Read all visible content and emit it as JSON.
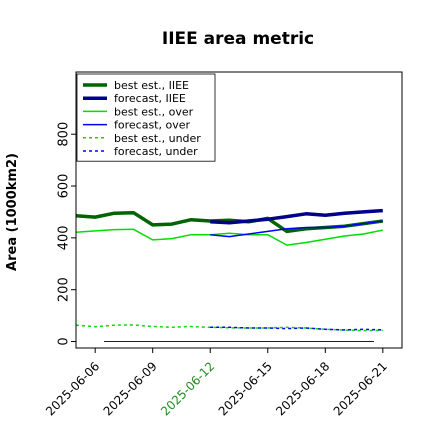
{
  "chart_data": {
    "type": "line",
    "title": "IIEE area metric",
    "xlabel": "",
    "ylabel": "Area (1000km2)",
    "xlim": [
      "2025-06-05",
      "2025-06-22"
    ],
    "ylim": [
      -25,
      1040
    ],
    "y_ticks": [
      0,
      200,
      400,
      600,
      800
    ],
    "x_ticks": [
      "2025-06-06",
      "2025-06-09",
      "2025-06-12",
      "2025-06-15",
      "2025-06-18",
      "2025-06-21"
    ],
    "highlighted_x_tick": "2025-06-12",
    "highlight_color": "#228B22",
    "grid": false,
    "legend_position": "top-left",
    "zero_line": 0,
    "series": [
      {
        "name": "best est., IIEE",
        "color": "#006400",
        "style": "solid",
        "width": 3.5,
        "x": [
          "2025-06-05",
          "2025-06-06",
          "2025-06-07",
          "2025-06-08",
          "2025-06-09",
          "2025-06-10",
          "2025-06-11",
          "2025-06-12",
          "2025-06-13",
          "2025-06-14",
          "2025-06-15",
          "2025-06-16",
          "2025-06-17",
          "2025-06-18",
          "2025-06-19",
          "2025-06-20",
          "2025-06-21"
        ],
        "values": [
          485,
          480,
          495,
          497,
          450,
          453,
          470,
          465,
          468,
          462,
          475,
          425,
          435,
          440,
          445,
          455,
          465
        ]
      },
      {
        "name": "forecast, IIEE",
        "color": "#00008B",
        "style": "solid",
        "width": 3.5,
        "x": [
          "2025-06-12",
          "2025-06-13",
          "2025-06-14",
          "2025-06-15",
          "2025-06-16",
          "2025-06-17",
          "2025-06-18",
          "2025-06-19",
          "2025-06-20",
          "2025-06-21"
        ],
        "values": [
          462,
          458,
          465,
          472,
          482,
          493,
          487,
          495,
          500,
          505
        ]
      },
      {
        "name": "best est., over",
        "color": "#00DD00",
        "style": "solid",
        "width": 1.5,
        "x": [
          "2025-06-05",
          "2025-06-06",
          "2025-06-07",
          "2025-06-08",
          "2025-06-09",
          "2025-06-10",
          "2025-06-11",
          "2025-06-12",
          "2025-06-13",
          "2025-06-14",
          "2025-06-15",
          "2025-06-16",
          "2025-06-17",
          "2025-06-18",
          "2025-06-19",
          "2025-06-20",
          "2025-06-21"
        ],
        "values": [
          422,
          427,
          432,
          433,
          392,
          397,
          412,
          412,
          418,
          412,
          412,
          372,
          382,
          395,
          407,
          415,
          430
        ]
      },
      {
        "name": "forecast, over",
        "color": "#0000FF",
        "style": "solid",
        "width": 1.5,
        "x": [
          "2025-06-12",
          "2025-06-13",
          "2025-06-14",
          "2025-06-15",
          "2025-06-16",
          "2025-06-17",
          "2025-06-18",
          "2025-06-19",
          "2025-06-20",
          "2025-06-21"
        ],
        "values": [
          412,
          405,
          415,
          425,
          435,
          440,
          440,
          445,
          455,
          465
        ]
      },
      {
        "name": "best est., under",
        "color": "#00DD00",
        "style": "dashed",
        "width": 1.5,
        "x": [
          "2025-06-05",
          "2025-06-06",
          "2025-06-07",
          "2025-06-08",
          "2025-06-09",
          "2025-06-10",
          "2025-06-11",
          "2025-06-12",
          "2025-06-13",
          "2025-06-14",
          "2025-06-15",
          "2025-06-16",
          "2025-06-17",
          "2025-06-18",
          "2025-06-19",
          "2025-06-20",
          "2025-06-21"
        ],
        "values": [
          63,
          57,
          63,
          64,
          58,
          55,
          58,
          55,
          53,
          52,
          52,
          55,
          52,
          47,
          44,
          42,
          43
        ]
      },
      {
        "name": "forecast, under",
        "color": "#0000FF",
        "style": "dashed",
        "width": 1.5,
        "x": [
          "2025-06-12",
          "2025-06-13",
          "2025-06-14",
          "2025-06-15",
          "2025-06-16",
          "2025-06-17",
          "2025-06-18",
          "2025-06-19",
          "2025-06-20",
          "2025-06-21"
        ],
        "values": [
          55,
          55,
          52,
          52,
          50,
          52,
          47,
          45,
          47,
          45
        ]
      }
    ]
  }
}
